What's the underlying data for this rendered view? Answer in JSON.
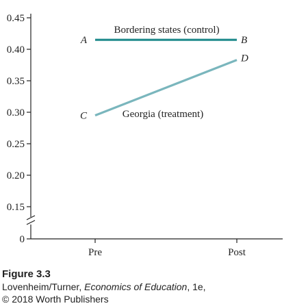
{
  "chart_data": {
    "type": "line",
    "categories": [
      "Pre",
      "Post"
    ],
    "series": [
      {
        "name": "Bordering states (control)",
        "values": [
          0.415,
          0.415
        ],
        "color": "#1e8a8c",
        "point_labels": [
          "A",
          "B"
        ]
      },
      {
        "name": "Georgia (treatment)",
        "values": [
          0.295,
          0.383
        ],
        "color": "#7ab6bd",
        "point_labels": [
          "C",
          "D"
        ]
      }
    ],
    "yticks": [
      0,
      0.15,
      0.2,
      0.25,
      0.3,
      0.35,
      0.4,
      0.45
    ],
    "ytick_labels": [
      "0",
      "0.15",
      "0.20",
      "0.25",
      "0.30",
      "0.35",
      "0.40",
      "0.45"
    ],
    "ylim": [
      0.15,
      0.45
    ],
    "axis_break": true,
    "grid": false
  },
  "caption": {
    "figure_number": "Figure 3.3",
    "authors": "Lovenheim/Turner, ",
    "book_title": "Economics of Education",
    "edition": ", 1e,",
    "copyright": "© 2018 Worth Publishers"
  }
}
